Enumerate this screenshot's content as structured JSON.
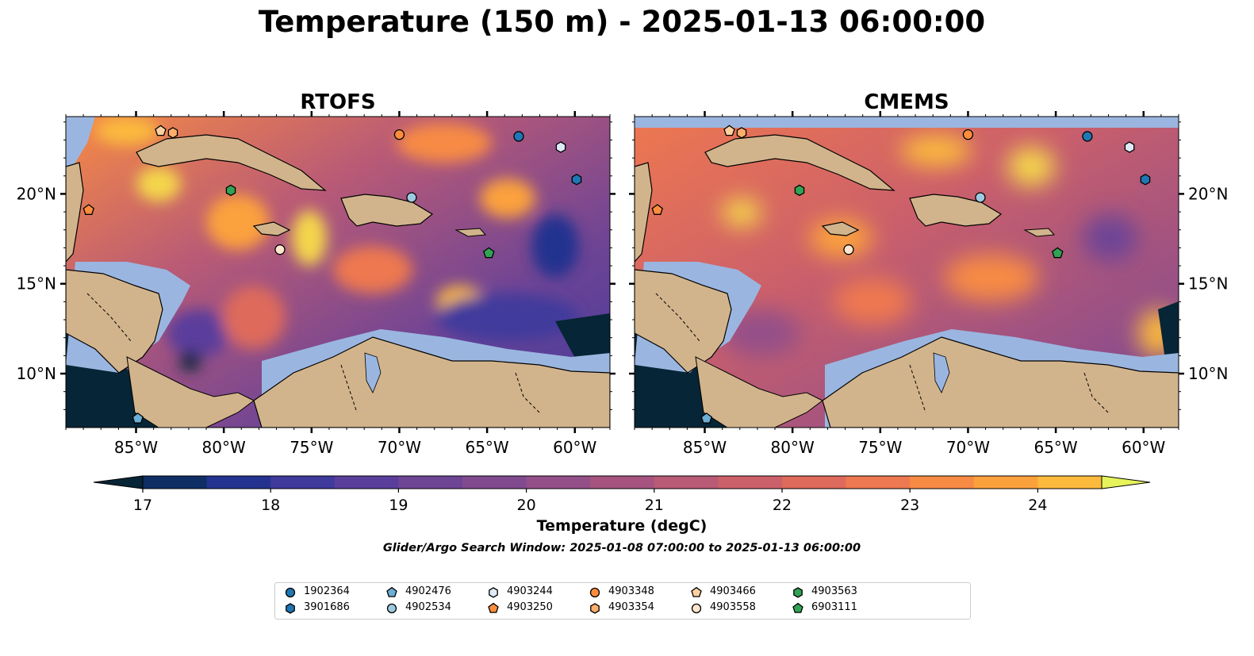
{
  "title": "Temperature (150 m) - 2025-01-13 06:00:00",
  "panels": [
    {
      "title": "RTOFS"
    },
    {
      "title": "CMEMS"
    }
  ],
  "map": {
    "lon_range": [
      -89,
      -58
    ],
    "lat_range": [
      7,
      24.3
    ],
    "lon_ticks": [
      "85°W",
      "80°W",
      "75°W",
      "70°W",
      "65°W",
      "60°W"
    ],
    "lat_ticks": [
      "20°N",
      "15°N",
      "10°N"
    ],
    "land_color": "#d2b48c",
    "shelf_color": "#9ab6e0",
    "deep_cold_color": "#062536"
  },
  "colorbar": {
    "label": "Temperature (degC)",
    "ticks": [
      "17",
      "18",
      "19",
      "20",
      "21",
      "22",
      "23",
      "24"
    ],
    "range": [
      16.5,
      24.5
    ],
    "step": 0.5,
    "colors": [
      "#062536",
      "#0e2e65",
      "#24338f",
      "#3f3a9c",
      "#5a3e9c",
      "#6e4495",
      "#814a8f",
      "#944f88",
      "#a6547f",
      "#b95a76",
      "#cc606a",
      "#de6a5c",
      "#ee7850",
      "#f78b44",
      "#fba13c",
      "#fbba3c",
      "#f4d64c",
      "#e6f35a"
    ]
  },
  "search_window": "Glider/Argo Search Window: 2025-01-08 07:00:00 to 2025-01-13 06:00:00",
  "floats": [
    {
      "id": "1902364",
      "marker": "circle",
      "color": "#1f77b4",
      "lon": -63.2,
      "lat": 23.2
    },
    {
      "id": "3901686",
      "marker": "hexagon",
      "color": "#1f77b4",
      "lon": -59.9,
      "lat": 20.8
    },
    {
      "id": "4902476",
      "marker": "pentagon",
      "color": "#6baed6",
      "lon": -84.9,
      "lat": 7.5
    },
    {
      "id": "4902534",
      "marker": "circle",
      "color": "#9ecae1",
      "lon": -69.3,
      "lat": 19.8
    },
    {
      "id": "4903244",
      "marker": "hexagon",
      "color": "#deebf7",
      "lon": -60.8,
      "lat": 22.6
    },
    {
      "id": "4903250",
      "marker": "pentagon",
      "color": "#fd8d3c",
      "lon": -87.7,
      "lat": 19.1
    },
    {
      "id": "4903348",
      "marker": "circle",
      "color": "#fd8d3c",
      "lon": -70.0,
      "lat": 23.3
    },
    {
      "id": "4903354",
      "marker": "hexagon",
      "color": "#fdae6b",
      "lon": -82.9,
      "lat": 23.4
    },
    {
      "id": "4903466",
      "marker": "pentagon",
      "color": "#fdd0a2",
      "lon": -83.6,
      "lat": 23.5
    },
    {
      "id": "4903558",
      "marker": "circle",
      "color": "#fee6ce",
      "lon": -76.8,
      "lat": 16.9
    },
    {
      "id": "4903563",
      "marker": "hexagon",
      "color": "#31a354",
      "lon": -79.6,
      "lat": 20.2
    },
    {
      "id": "6903111",
      "marker": "pentagon",
      "color": "#31a354",
      "lon": -64.9,
      "lat": 16.7
    }
  ]
}
